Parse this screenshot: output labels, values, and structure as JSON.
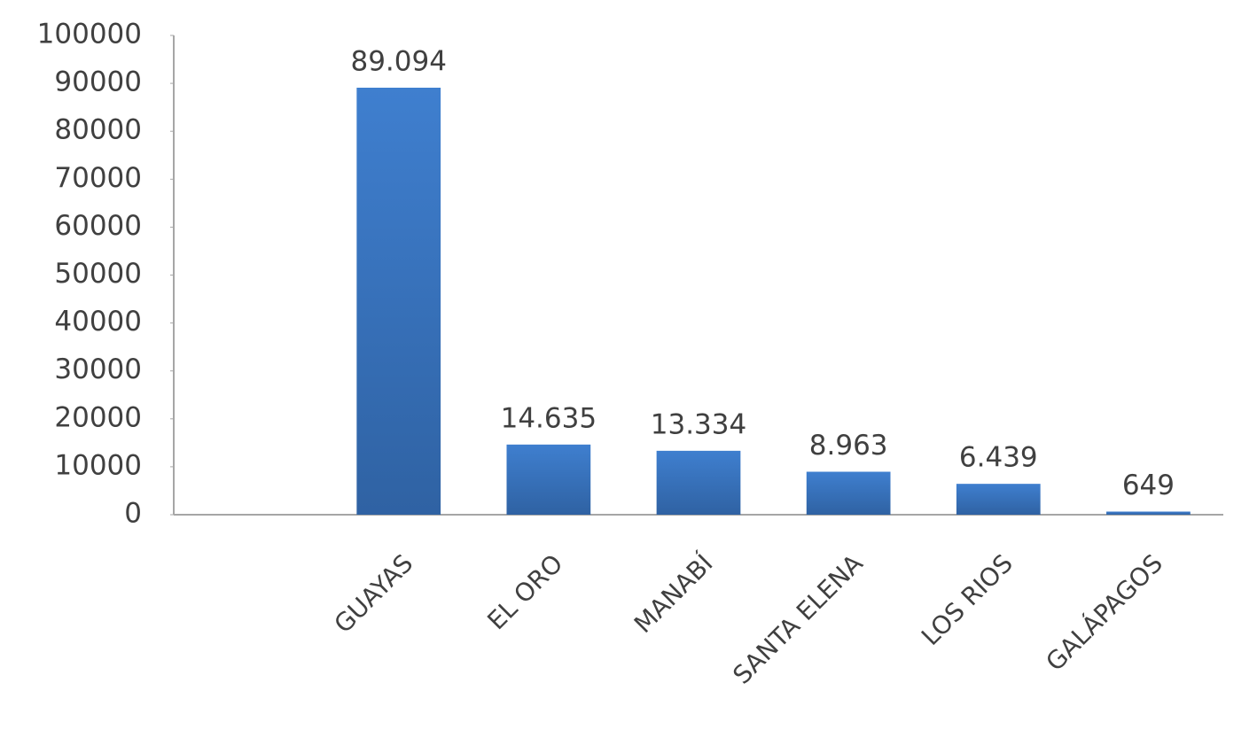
{
  "chart_data": {
    "type": "bar",
    "categories": [
      null,
      "GUAYAS",
      "EL ORO",
      "MANABÍ",
      "SANTA ELENA",
      "LOS RIOS",
      "GALÁPAGOS"
    ],
    "values": [
      null,
      89094,
      14635,
      13334,
      8963,
      6439,
      649
    ],
    "value_labels": [
      null,
      "89.094",
      "14.635",
      "13.334",
      "8.963",
      "6.439",
      "649"
    ],
    "color": "#3a78c4",
    "ylim": [
      0,
      100000
    ],
    "yticks": [
      0,
      10000,
      20000,
      30000,
      40000,
      50000,
      60000,
      70000,
      80000,
      90000,
      100000
    ],
    "grid": false
  }
}
